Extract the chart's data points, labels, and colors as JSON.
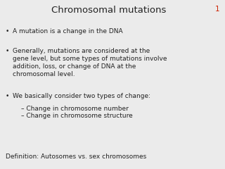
{
  "title": "Chromosomal mutations",
  "slide_number": "1",
  "background_color": "#ebebeb",
  "title_color": "#222222",
  "slide_number_color": "#cc2200",
  "text_color": "#222222",
  "bullet_points": [
    "A mutation is a change in the DNA",
    "Generally, mutations are considered at the\ngene level, but some types of mutations involve\naddition, loss, or change of DNA at the\nchromosomal level.",
    "We basically consider two types of change:"
  ],
  "sub_bullets": [
    "– Change in chromosome number",
    "– Change in chromosome structure"
  ],
  "definition": "Definition: Autosomes vs. sex chromosomes",
  "title_fontsize": 9.5,
  "body_fontsize": 6.5,
  "sub_fontsize": 6.5,
  "def_fontsize": 6.5,
  "slide_number_fontsize": 7.5
}
